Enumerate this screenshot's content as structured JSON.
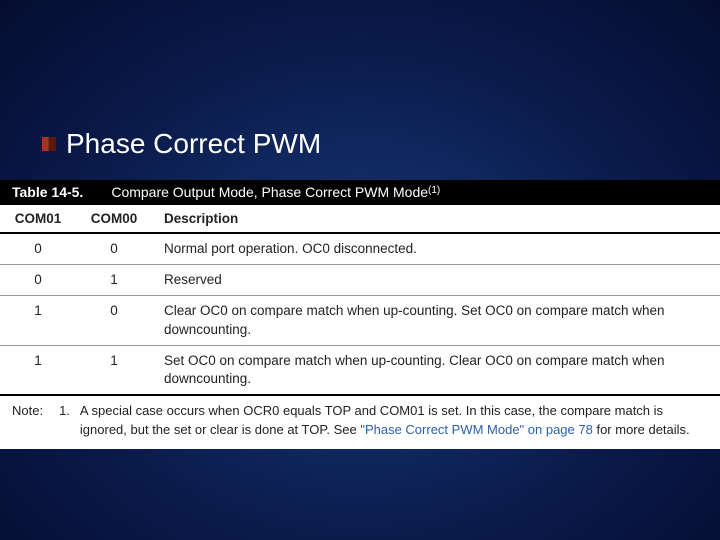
{
  "heading": "Phase Correct PWM",
  "table": {
    "label": "Table 14-5.",
    "title": "Compare Output Mode, Phase Correct PWM Mode",
    "title_sup": "(1)",
    "columns": [
      "COM01",
      "COM00",
      "Description"
    ],
    "rows": [
      {
        "c0": "0",
        "c1": "0",
        "desc": "Normal port operation. OC0 disconnected."
      },
      {
        "c0": "0",
        "c1": "1",
        "desc": "Reserved"
      },
      {
        "c0": "1",
        "c1": "0",
        "desc": "Clear OC0 on compare match when up-counting. Set OC0 on compare match when downcounting."
      },
      {
        "c0": "1",
        "c1": "1",
        "desc": "Set OC0 on compare match when up-counting. Clear OC0 on compare match when downcounting."
      }
    ]
  },
  "note": {
    "label": "Note:",
    "num": "1.",
    "text_before": "A special case occurs when OCR0 equals TOP and COM01 is set. In this case, the compare match is ignored, but the set or clear is done at TOP. See ",
    "link_text": "\"Phase Correct PWM Mode\" on page 78",
    "text_after": " for more details."
  },
  "colors": {
    "bg_center": "#1a3a7a",
    "bg_edge": "#050d30",
    "bullet_left": "#b03020",
    "bullet_right": "#5a1810",
    "caption_bg": "#000000",
    "caption_fg": "#ffffff",
    "table_bg": "#ffffff",
    "link": "#2a5fb0"
  }
}
